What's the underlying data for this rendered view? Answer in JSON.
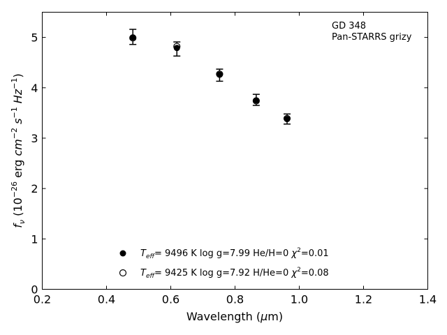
{
  "chart_data": {
    "type": "scatter",
    "annotation": [
      "GD 348",
      "Pan-STARRS grizy"
    ],
    "xlabel": "Wavelength (μm)",
    "ylabel": "f_ν (10^-26 erg cm^-2 s^-1 Hz^-1)",
    "xlim": [
      0.2,
      1.4
    ],
    "ylim": [
      0,
      5.5
    ],
    "xticks": [
      "0.2",
      "0.4",
      "0.6",
      "0.8",
      "1.0",
      "1.2",
      "1.4"
    ],
    "yticks": [
      "0",
      "1",
      "2",
      "3",
      "4",
      "5"
    ],
    "grid": false,
    "legend_position": "bottom-center",
    "observed": {
      "x": [
        0.482,
        0.619,
        0.752,
        0.866,
        0.962
      ],
      "y": [
        5.01,
        4.77,
        4.25,
        3.76,
        3.38
      ],
      "err": [
        0.15,
        0.14,
        0.12,
        0.11,
        0.1
      ]
    },
    "series": [
      {
        "name": "T_eff= 9496 K log g=7.99 He/H=0 χ²=0.01",
        "marker": "filled-circle",
        "x": [
          0.482,
          0.619,
          0.752,
          0.866,
          0.962
        ],
        "y": [
          5.0,
          4.79,
          4.26,
          3.75,
          3.38
        ]
      },
      {
        "name": "T_eff= 9425 K log g=7.92 H/He=0 χ²=0.08",
        "marker": "open-circle",
        "x": [
          0.482,
          0.619,
          0.752,
          0.866,
          0.962
        ],
        "y": [
          4.99,
          4.82,
          4.27,
          3.74,
          3.39
        ]
      }
    ],
    "legend_parts": [
      {
        "temp": "9496",
        "logg": "7.99",
        "comp_label": "He/H",
        "comp_val": "0",
        "chi2": "0.01"
      },
      {
        "temp": "9425",
        "logg": "7.92",
        "comp_label": "H/He",
        "comp_val": "0",
        "chi2": "0.08"
      }
    ],
    "colors": {
      "marker": "#000000",
      "axes": "#000000",
      "background": "#ffffff"
    }
  }
}
